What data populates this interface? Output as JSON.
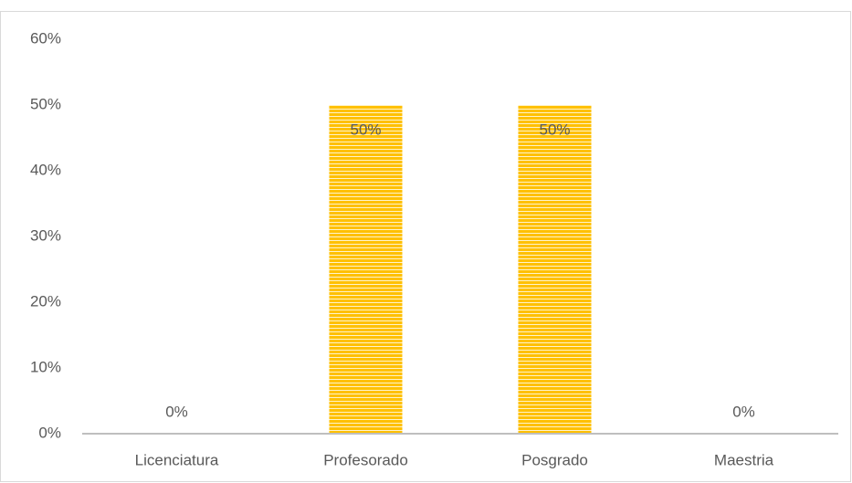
{
  "chart_data": {
    "type": "bar",
    "categories": [
      "Licenciatura",
      "Profesorado",
      "Posgrado",
      "Maestria"
    ],
    "values": [
      0,
      50,
      50,
      0
    ],
    "value_labels": [
      "0%",
      "50%",
      "50%",
      "0%"
    ],
    "color": "#ffc000",
    "ylim": [
      0,
      60
    ],
    "yticks": [
      {
        "value": 0,
        "label": "0%"
      },
      {
        "value": 10,
        "label": "10%"
      },
      {
        "value": 20,
        "label": "20%"
      },
      {
        "value": 30,
        "label": "30%"
      },
      {
        "value": 40,
        "label": "40%"
      },
      {
        "value": 50,
        "label": "50%"
      },
      {
        "value": 60,
        "label": "60%"
      }
    ],
    "grid": false
  }
}
